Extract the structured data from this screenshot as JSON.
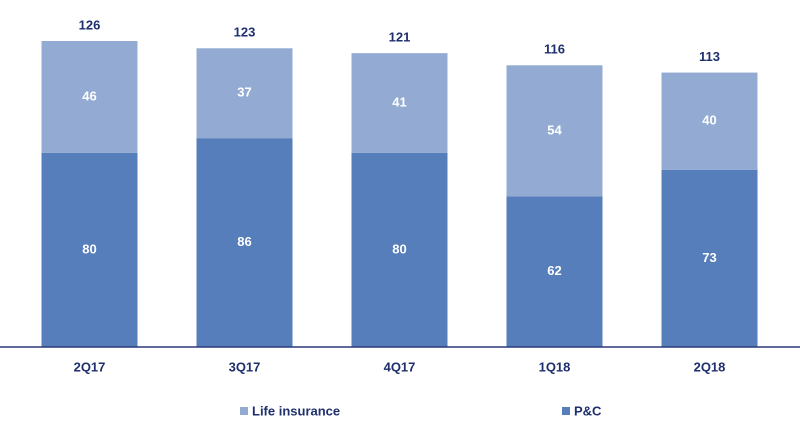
{
  "chart_data": {
    "type": "stacked_bar",
    "categories": [
      "2Q17",
      "3Q17",
      "4Q17",
      "1Q18",
      "2Q18"
    ],
    "series": [
      {
        "name": "P&C",
        "color": "#557ebb",
        "values": [
          80,
          86,
          80,
          62,
          73
        ]
      },
      {
        "name": "Life insurance",
        "color": "#93abd3",
        "values": [
          46,
          37,
          41,
          54,
          40
        ]
      }
    ],
    "totals": [
      126,
      123,
      121,
      116,
      113
    ],
    "ylim": [
      0,
      126
    ]
  }
}
